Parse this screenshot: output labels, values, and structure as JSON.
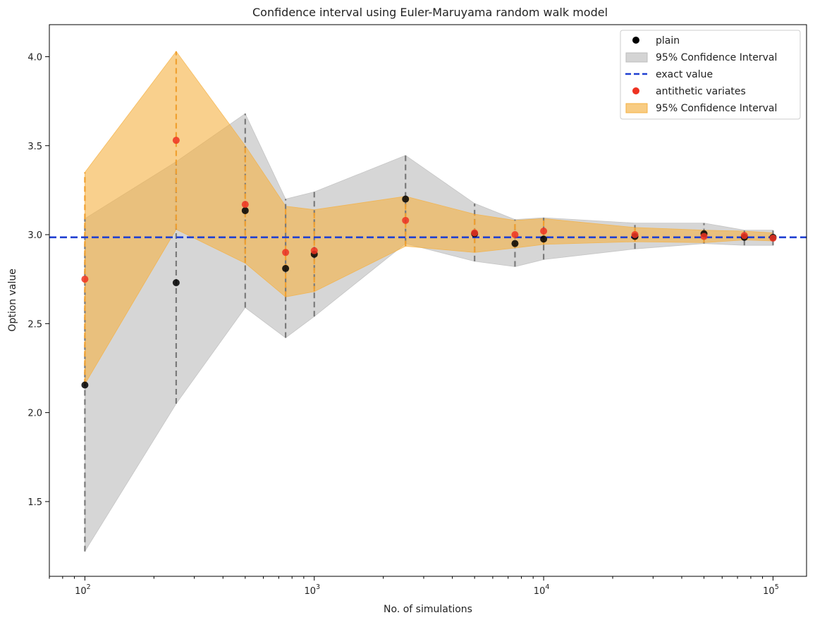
{
  "chart_data": {
    "type": "scatter",
    "title": "Confidence interval using Euler-Maruyama random walk model",
    "xlabel": "No. of simulations",
    "ylabel": "Option value",
    "xscale": "log",
    "xlim": [
      70,
      140000
    ],
    "ylim": [
      1.08,
      4.18
    ],
    "x_ticks": [
      {
        "value": 100,
        "base": "10",
        "exp": "2"
      },
      {
        "value": 1000,
        "base": "10",
        "exp": "3"
      },
      {
        "value": 10000,
        "base": "10",
        "exp": "4"
      },
      {
        "value": 100000,
        "base": "10",
        "exp": "5"
      }
    ],
    "y_ticks": [
      {
        "value": 1.5,
        "label": "1.5"
      },
      {
        "value": 2.0,
        "label": "2.0"
      },
      {
        "value": 2.5,
        "label": "2.5"
      },
      {
        "value": 3.0,
        "label": "3.0"
      },
      {
        "value": 3.5,
        "label": "3.5"
      },
      {
        "value": 4.0,
        "label": "4.0"
      }
    ],
    "grid": false,
    "legend_position": "top-right",
    "x": [
      100,
      250,
      500,
      750,
      1000,
      2500,
      5000,
      7500,
      10000,
      25000,
      50000,
      75000,
      100000
    ],
    "exact_value": 2.985,
    "series": [
      {
        "name": "plain",
        "kind": "scatter",
        "color": "#000000",
        "values": [
          2.155,
          2.73,
          3.135,
          2.81,
          2.89,
          3.2,
          3.005,
          2.95,
          2.975,
          2.99,
          3.005,
          2.985,
          2.985
        ],
        "ci_name": "95% Confidence Interval",
        "ci_color": "#bdbdbd",
        "ci_lower": [
          1.22,
          2.05,
          2.59,
          2.42,
          2.54,
          2.95,
          2.85,
          2.82,
          2.86,
          2.92,
          2.95,
          2.94,
          2.94
        ],
        "ci_upper": [
          3.09,
          3.41,
          3.68,
          3.2,
          3.24,
          3.445,
          3.175,
          3.085,
          3.095,
          3.065,
          3.065,
          3.025,
          3.025
        ]
      },
      {
        "name": "antithetic variates",
        "kind": "scatter",
        "color": "#ee3322",
        "values": [
          2.75,
          3.53,
          3.17,
          2.9,
          2.91,
          3.08,
          3.01,
          3.0,
          3.02,
          3.0,
          2.99,
          2.995,
          2.98
        ],
        "ci_name": "95% Confidence Interval",
        "ci_color": "#f5b041",
        "ci_lower": [
          2.16,
          3.03,
          2.84,
          2.65,
          2.68,
          2.935,
          2.9,
          2.925,
          2.945,
          2.96,
          2.955,
          2.97,
          2.965
        ],
        "ci_upper": [
          3.35,
          4.03,
          3.5,
          3.16,
          3.14,
          3.215,
          3.115,
          3.08,
          3.09,
          3.04,
          3.025,
          3.02,
          3.01
        ]
      }
    ],
    "legend": [
      {
        "label": "plain",
        "kind": "marker",
        "color": "#000000"
      },
      {
        "label": "95% Confidence Interval",
        "kind": "patch",
        "color": "#bdbdbd"
      },
      {
        "label": "exact value",
        "kind": "dashed",
        "color": "#1f3fd1"
      },
      {
        "label": "antithetic variates",
        "kind": "marker",
        "color": "#ee3322"
      },
      {
        "label": "95% Confidence Interval",
        "kind": "patch",
        "color": "#f5b041"
      }
    ]
  }
}
